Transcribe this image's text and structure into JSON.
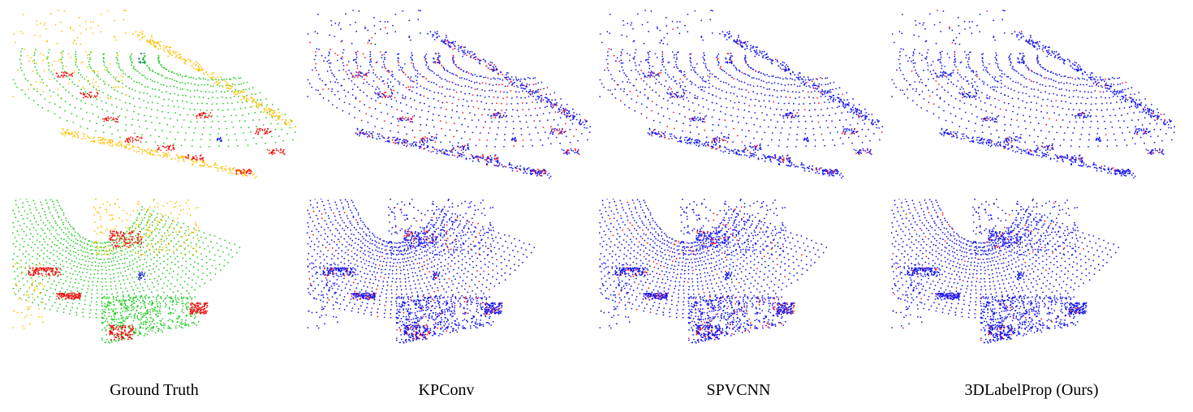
{
  "figure": {
    "columns": [
      {
        "caption": "Ground Truth"
      },
      {
        "caption": "KPConv"
      },
      {
        "caption": "SPVCNN"
      },
      {
        "caption": "3DLabelProp (Ours)"
      }
    ],
    "colors": {
      "road_green": "#22cc22",
      "building_yellow": "#ffc000",
      "object_red": "#ee1111",
      "car_blue": "#1a1aee",
      "pole_teal": "#118855",
      "correct_blue": "#1515ee",
      "error_red": "#ff1010"
    }
  }
}
